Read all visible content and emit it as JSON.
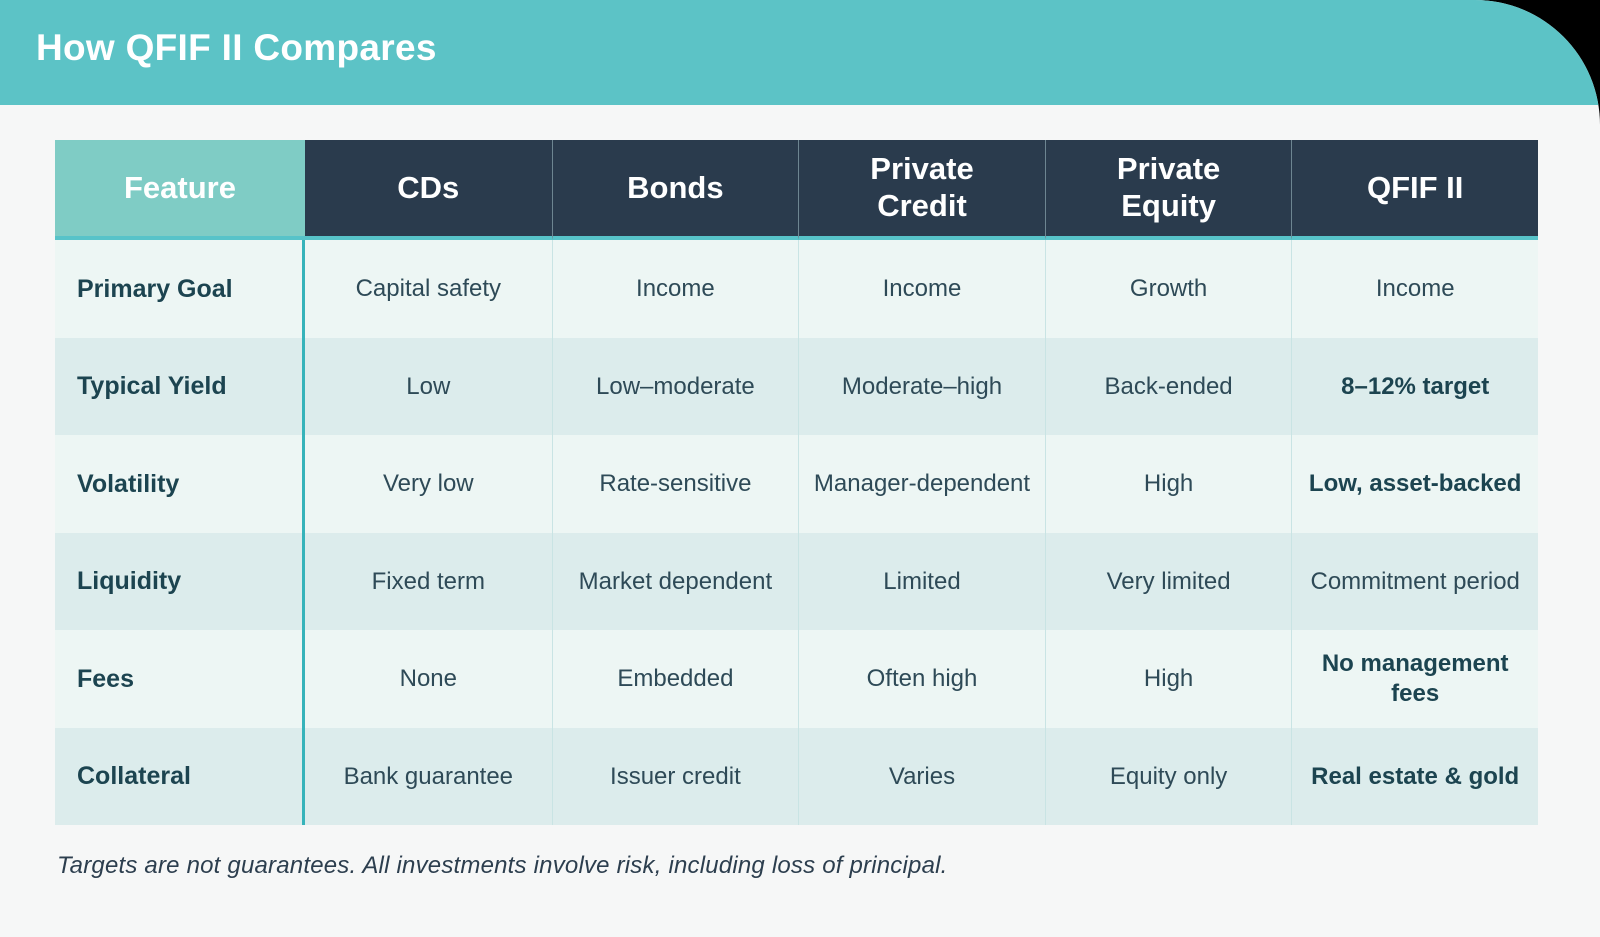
{
  "banner": {
    "title": "How QFIF II Compares"
  },
  "table": {
    "columns": [
      "Feature",
      "CDs",
      "Bonds",
      "Private Credit",
      "Private Equity",
      "QFIF II"
    ],
    "rows": [
      {
        "cells": [
          "Primary Goal",
          "Capital safety",
          "Income",
          "Income",
          "Growth",
          "Income"
        ]
      },
      {
        "cells": [
          "Typical Yield",
          "Low",
          "Low–moderate",
          "Moderate–high",
          "Back-ended",
          "8–12% target"
        ]
      },
      {
        "cells": [
          "Volatility",
          "Very low",
          "Rate-sensitive",
          "Manager-dependent",
          "High",
          "Low, asset-backed"
        ]
      },
      {
        "cells": [
          "Liquidity",
          "Fixed term",
          "Market dependent",
          "Limited",
          "Very limited",
          "Commitment period"
        ]
      },
      {
        "cells": [
          "Fees",
          "None",
          "Embedded",
          "Often high",
          "High",
          "No management fees"
        ]
      },
      {
        "cells": [
          "Collateral",
          "Bank guarantee",
          "Issuer credit",
          "Varies",
          "Equity only",
          "Real estate & gold"
        ]
      }
    ]
  },
  "footer": {
    "disclaimer": "Targets are not guarantees. All investments involve risk, including loss of principal."
  },
  "colors": {
    "banner": "#5cc3c6",
    "feature_header": "#7fccc5",
    "header_dark": "#2a3b4d",
    "row_light": "#edf6f4",
    "row_alt": "#dcecec",
    "accent_line": "#36b3ba",
    "header_underline": "#57c3c9",
    "text_strong": "#1c4450",
    "text_body": "#2e4a57",
    "page_bg": "#f6f7f7"
  }
}
